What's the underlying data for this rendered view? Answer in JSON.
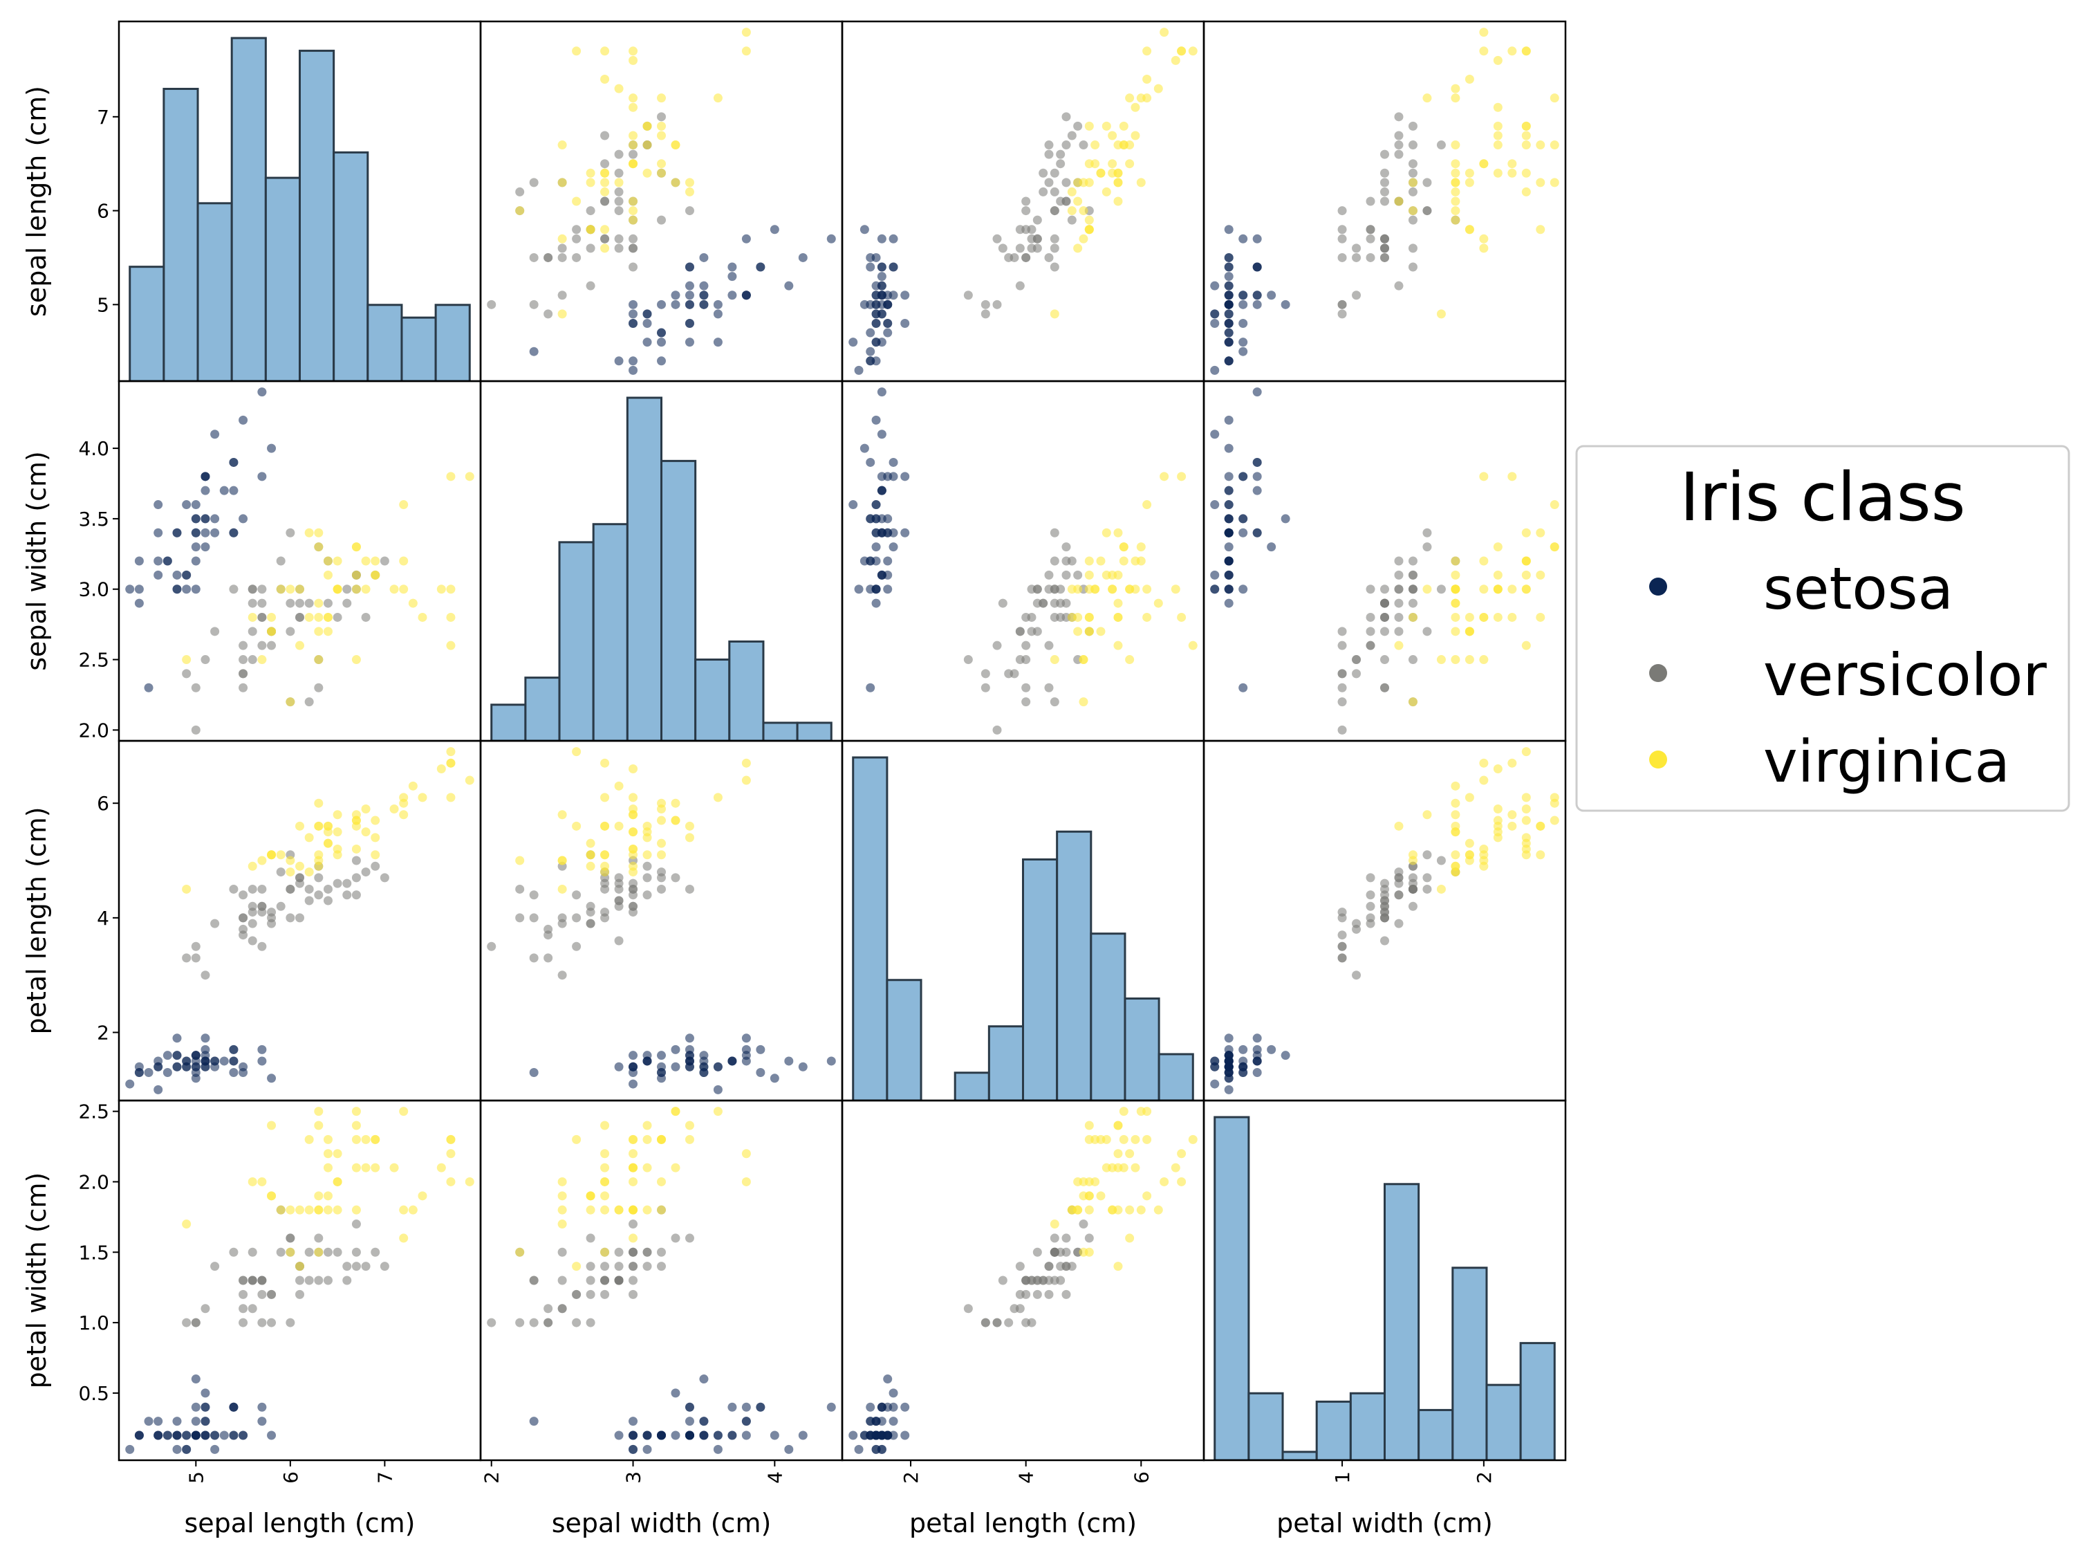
{
  "chart_data": {
    "type": "scatter-matrix",
    "variables": [
      "sepal length (cm)",
      "sepal width (cm)",
      "petal length (cm)",
      "petal width (cm)"
    ],
    "axes": [
      {
        "name": "sepal length (cm)",
        "range": [
          4.3,
          7.9
        ],
        "ticks": [
          5,
          6,
          7
        ],
        "tick_labels": [
          "5",
          "6",
          "7"
        ]
      },
      {
        "name": "sepal width (cm)",
        "range": [
          2.0,
          4.4
        ],
        "ticks": [
          2.0,
          2.5,
          3.0,
          3.5,
          4.0
        ],
        "tick_labels": [
          "2.0",
          "2.5",
          "3.0",
          "3.5",
          "4.0"
        ],
        "x_ticks": [
          2,
          3,
          4
        ],
        "x_tick_labels": [
          "2",
          "3",
          "4"
        ]
      },
      {
        "name": "petal length (cm)",
        "range": [
          1.0,
          6.9
        ],
        "ticks": [
          2,
          4,
          6
        ],
        "tick_labels": [
          "2",
          "4",
          "6"
        ]
      },
      {
        "name": "petal width (cm)",
        "range": [
          0.1,
          2.5
        ],
        "ticks": [
          0.5,
          1.0,
          1.5,
          2.0,
          2.5
        ],
        "tick_labels": [
          "0.5",
          "1.0",
          "1.5",
          "2.0",
          "2.5"
        ],
        "x_ticks": [
          1,
          2
        ],
        "x_tick_labels": [
          "1",
          "2"
        ]
      }
    ],
    "legend": {
      "title": "Iris class",
      "placement": "right",
      "entries": [
        {
          "name": "setosa",
          "color": "#0b2553"
        },
        {
          "name": "versicolor",
          "color": "#7a7a76"
        },
        {
          "name": "virginica",
          "color": "#fde838"
        }
      ]
    },
    "histogram_color": "#7fb0d5",
    "histograms": [
      {
        "variable": "sepal length (cm)",
        "bin_edges": [
          4.3,
          4.66,
          5.02,
          5.38,
          5.74,
          6.1,
          6.46,
          6.82,
          7.18,
          7.54,
          7.9
        ],
        "counts": [
          9,
          23,
          14,
          27,
          16,
          26,
          18,
          6,
          5,
          6
        ]
      },
      {
        "variable": "sepal width (cm)",
        "bin_edges": [
          2.0,
          2.24,
          2.48,
          2.72,
          2.96,
          3.2,
          3.44,
          3.68,
          3.92,
          4.16,
          4.4
        ],
        "counts": [
          4,
          7,
          22,
          24,
          38,
          31,
          9,
          11,
          2,
          2
        ]
      },
      {
        "variable": "petal length (cm)",
        "bin_edges": [
          1.0,
          1.59,
          2.18,
          2.77,
          3.36,
          3.95,
          4.54,
          5.13,
          5.72,
          6.31,
          6.9
        ],
        "counts": [
          37,
          13,
          0,
          3,
          8,
          26,
          29,
          18,
          11,
          5
        ]
      },
      {
        "variable": "petal width (cm)",
        "bin_edges": [
          0.1,
          0.34,
          0.58,
          0.82,
          1.06,
          1.3,
          1.54,
          1.78,
          2.02,
          2.26,
          2.5
        ],
        "counts": [
          41,
          8,
          1,
          7,
          8,
          33,
          6,
          23,
          9,
          14
        ]
      }
    ],
    "series": [
      {
        "name": "setosa",
        "color": "#0b2553",
        "points": [
          [
            5.1,
            3.5,
            1.4,
            0.2
          ],
          [
            4.9,
            3.0,
            1.4,
            0.2
          ],
          [
            4.7,
            3.2,
            1.3,
            0.2
          ],
          [
            4.6,
            3.1,
            1.5,
            0.2
          ],
          [
            5.0,
            3.6,
            1.4,
            0.2
          ],
          [
            5.4,
            3.9,
            1.7,
            0.4
          ],
          [
            4.6,
            3.4,
            1.4,
            0.3
          ],
          [
            5.0,
            3.4,
            1.5,
            0.2
          ],
          [
            4.4,
            2.9,
            1.4,
            0.2
          ],
          [
            4.9,
            3.1,
            1.5,
            0.1
          ],
          [
            5.4,
            3.7,
            1.5,
            0.2
          ],
          [
            4.8,
            3.4,
            1.6,
            0.2
          ],
          [
            4.8,
            3.0,
            1.4,
            0.1
          ],
          [
            4.3,
            3.0,
            1.1,
            0.1
          ],
          [
            5.8,
            4.0,
            1.2,
            0.2
          ],
          [
            5.7,
            4.4,
            1.5,
            0.4
          ],
          [
            5.4,
            3.9,
            1.3,
            0.4
          ],
          [
            5.1,
            3.5,
            1.4,
            0.3
          ],
          [
            5.7,
            3.8,
            1.7,
            0.3
          ],
          [
            5.1,
            3.8,
            1.5,
            0.3
          ],
          [
            5.4,
            3.4,
            1.7,
            0.2
          ],
          [
            5.1,
            3.7,
            1.5,
            0.4
          ],
          [
            4.6,
            3.6,
            1.0,
            0.2
          ],
          [
            5.1,
            3.3,
            1.7,
            0.5
          ],
          [
            4.8,
            3.4,
            1.9,
            0.2
          ],
          [
            5.0,
            3.0,
            1.6,
            0.2
          ],
          [
            5.0,
            3.4,
            1.6,
            0.4
          ],
          [
            5.2,
            3.5,
            1.5,
            0.2
          ],
          [
            5.2,
            3.4,
            1.4,
            0.2
          ],
          [
            4.7,
            3.2,
            1.6,
            0.2
          ],
          [
            4.8,
            3.1,
            1.6,
            0.2
          ],
          [
            5.4,
            3.4,
            1.5,
            0.4
          ],
          [
            5.2,
            4.1,
            1.5,
            0.1
          ],
          [
            5.5,
            4.2,
            1.4,
            0.2
          ],
          [
            4.9,
            3.1,
            1.5,
            0.2
          ],
          [
            5.0,
            3.2,
            1.2,
            0.2
          ],
          [
            5.5,
            3.5,
            1.3,
            0.2
          ],
          [
            4.9,
            3.6,
            1.4,
            0.1
          ],
          [
            4.4,
            3.0,
            1.3,
            0.2
          ],
          [
            5.1,
            3.4,
            1.5,
            0.2
          ],
          [
            5.0,
            3.5,
            1.3,
            0.3
          ],
          [
            4.5,
            2.3,
            1.3,
            0.3
          ],
          [
            4.4,
            3.2,
            1.3,
            0.2
          ],
          [
            5.0,
            3.5,
            1.6,
            0.6
          ],
          [
            5.1,
            3.8,
            1.9,
            0.4
          ],
          [
            4.8,
            3.0,
            1.4,
            0.3
          ],
          [
            5.1,
            3.8,
            1.6,
            0.2
          ],
          [
            4.6,
            3.2,
            1.4,
            0.2
          ],
          [
            5.3,
            3.7,
            1.5,
            0.2
          ],
          [
            5.0,
            3.3,
            1.4,
            0.2
          ]
        ]
      },
      {
        "name": "versicolor",
        "color": "#7a7a76",
        "points": [
          [
            7.0,
            3.2,
            4.7,
            1.4
          ],
          [
            6.4,
            3.2,
            4.5,
            1.5
          ],
          [
            6.9,
            3.1,
            4.9,
            1.5
          ],
          [
            5.5,
            2.3,
            4.0,
            1.3
          ],
          [
            6.5,
            2.8,
            4.6,
            1.5
          ],
          [
            5.7,
            2.8,
            4.5,
            1.3
          ],
          [
            6.3,
            3.3,
            4.7,
            1.6
          ],
          [
            4.9,
            2.4,
            3.3,
            1.0
          ],
          [
            6.6,
            2.9,
            4.6,
            1.3
          ],
          [
            5.2,
            2.7,
            3.9,
            1.4
          ],
          [
            5.0,
            2.0,
            3.5,
            1.0
          ],
          [
            5.9,
            3.0,
            4.2,
            1.5
          ],
          [
            6.0,
            2.2,
            4.0,
            1.0
          ],
          [
            6.1,
            2.9,
            4.7,
            1.4
          ],
          [
            5.6,
            2.9,
            3.6,
            1.3
          ],
          [
            6.7,
            3.1,
            4.4,
            1.4
          ],
          [
            5.6,
            3.0,
            4.5,
            1.5
          ],
          [
            5.8,
            2.7,
            4.1,
            1.0
          ],
          [
            6.2,
            2.2,
            4.5,
            1.5
          ],
          [
            5.6,
            2.5,
            3.9,
            1.1
          ],
          [
            5.9,
            3.2,
            4.8,
            1.8
          ],
          [
            6.1,
            2.8,
            4.0,
            1.3
          ],
          [
            6.3,
            2.5,
            4.9,
            1.5
          ],
          [
            6.1,
            2.8,
            4.7,
            1.2
          ],
          [
            6.4,
            2.9,
            4.3,
            1.3
          ],
          [
            6.6,
            3.0,
            4.4,
            1.4
          ],
          [
            6.8,
            2.8,
            4.8,
            1.4
          ],
          [
            6.7,
            3.0,
            5.0,
            1.7
          ],
          [
            6.0,
            2.9,
            4.5,
            1.5
          ],
          [
            5.7,
            2.6,
            3.5,
            1.0
          ],
          [
            5.5,
            2.4,
            3.8,
            1.1
          ],
          [
            5.5,
            2.4,
            3.7,
            1.0
          ],
          [
            5.8,
            2.7,
            3.9,
            1.2
          ],
          [
            6.0,
            2.7,
            5.1,
            1.6
          ],
          [
            5.4,
            3.0,
            4.5,
            1.5
          ],
          [
            6.0,
            3.4,
            4.5,
            1.6
          ],
          [
            6.7,
            3.1,
            4.7,
            1.5
          ],
          [
            6.3,
            2.3,
            4.4,
            1.3
          ],
          [
            5.6,
            3.0,
            4.1,
            1.3
          ],
          [
            5.5,
            2.5,
            4.0,
            1.3
          ],
          [
            5.5,
            2.6,
            4.4,
            1.2
          ],
          [
            6.1,
            3.0,
            4.6,
            1.4
          ],
          [
            5.8,
            2.6,
            4.0,
            1.2
          ],
          [
            5.0,
            2.3,
            3.3,
            1.0
          ],
          [
            5.6,
            2.7,
            4.2,
            1.3
          ],
          [
            5.7,
            3.0,
            4.2,
            1.2
          ],
          [
            5.7,
            2.9,
            4.2,
            1.3
          ],
          [
            6.2,
            2.9,
            4.3,
            1.3
          ],
          [
            5.1,
            2.5,
            3.0,
            1.1
          ],
          [
            5.7,
            2.8,
            4.1,
            1.3
          ]
        ]
      },
      {
        "name": "virginica",
        "color": "#fde838",
        "points": [
          [
            6.3,
            3.3,
            6.0,
            2.5
          ],
          [
            5.8,
            2.7,
            5.1,
            1.9
          ],
          [
            7.1,
            3.0,
            5.9,
            2.1
          ],
          [
            6.3,
            2.9,
            5.6,
            1.8
          ],
          [
            6.5,
            3.0,
            5.8,
            2.2
          ],
          [
            7.6,
            3.0,
            6.6,
            2.1
          ],
          [
            4.9,
            2.5,
            4.5,
            1.7
          ],
          [
            7.3,
            2.9,
            6.3,
            1.8
          ],
          [
            6.7,
            2.5,
            5.8,
            1.8
          ],
          [
            7.2,
            3.6,
            6.1,
            2.5
          ],
          [
            6.5,
            3.2,
            5.1,
            2.0
          ],
          [
            6.4,
            2.7,
            5.3,
            1.9
          ],
          [
            6.8,
            3.0,
            5.5,
            2.1
          ],
          [
            5.7,
            2.5,
            5.0,
            2.0
          ],
          [
            5.8,
            2.8,
            5.1,
            2.4
          ],
          [
            6.4,
            3.2,
            5.3,
            2.3
          ],
          [
            6.5,
            3.0,
            5.5,
            1.8
          ],
          [
            7.7,
            3.8,
            6.7,
            2.2
          ],
          [
            7.7,
            2.6,
            6.9,
            2.3
          ],
          [
            6.0,
            2.2,
            5.0,
            1.5
          ],
          [
            6.9,
            3.2,
            5.7,
            2.3
          ],
          [
            5.6,
            2.8,
            4.9,
            2.0
          ],
          [
            7.7,
            2.8,
            6.7,
            2.0
          ],
          [
            6.3,
            2.7,
            4.9,
            1.8
          ],
          [
            6.7,
            3.3,
            5.7,
            2.1
          ],
          [
            7.2,
            3.2,
            6.0,
            1.8
          ],
          [
            6.2,
            2.8,
            4.8,
            1.8
          ],
          [
            6.1,
            3.0,
            4.9,
            1.8
          ],
          [
            6.4,
            2.8,
            5.6,
            2.1
          ],
          [
            7.2,
            3.0,
            5.8,
            1.6
          ],
          [
            7.4,
            2.8,
            6.1,
            1.9
          ],
          [
            7.9,
            3.8,
            6.4,
            2.0
          ],
          [
            6.4,
            2.8,
            5.6,
            2.2
          ],
          [
            6.3,
            2.8,
            5.1,
            1.5
          ],
          [
            6.1,
            2.6,
            5.6,
            1.4
          ],
          [
            7.7,
            3.0,
            6.1,
            2.3
          ],
          [
            6.3,
            3.4,
            5.6,
            2.4
          ],
          [
            6.4,
            3.1,
            5.5,
            1.8
          ],
          [
            6.0,
            3.0,
            4.8,
            1.8
          ],
          [
            6.9,
            3.1,
            5.4,
            2.1
          ],
          [
            6.7,
            3.1,
            5.6,
            2.4
          ],
          [
            6.9,
            3.1,
            5.1,
            2.3
          ],
          [
            5.8,
            2.7,
            5.1,
            1.9
          ],
          [
            6.8,
            3.2,
            5.9,
            2.3
          ],
          [
            6.7,
            3.3,
            5.7,
            2.5
          ],
          [
            6.7,
            3.0,
            5.2,
            2.3
          ],
          [
            6.3,
            2.5,
            5.0,
            1.9
          ],
          [
            6.5,
            3.0,
            5.2,
            2.0
          ],
          [
            6.2,
            3.4,
            5.4,
            2.3
          ],
          [
            5.9,
            3.0,
            5.1,
            1.8
          ]
        ]
      }
    ]
  }
}
